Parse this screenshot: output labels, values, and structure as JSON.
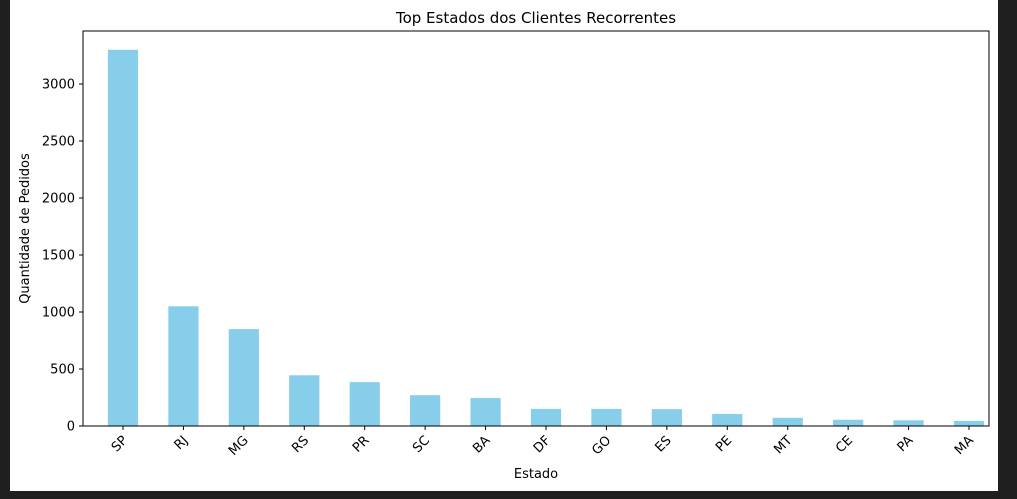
{
  "chart_data": {
    "type": "bar",
    "title": "Top Estados dos Clientes Recorrentes",
    "xlabel": "Estado",
    "ylabel": "Quantidade de Pedidos",
    "categories": [
      "SP",
      "RJ",
      "MG",
      "RS",
      "PR",
      "SC",
      "BA",
      "DF",
      "GO",
      "ES",
      "PE",
      "MT",
      "CE",
      "PA",
      "MA"
    ],
    "values": [
      3300,
      1050,
      850,
      445,
      385,
      270,
      245,
      150,
      150,
      148,
      105,
      72,
      55,
      50,
      45
    ],
    "ylim": [
      0,
      3465
    ],
    "yticks": [
      0,
      500,
      1000,
      1500,
      2000,
      2500,
      3000
    ],
    "bar_color": "#87ceeb",
    "grid": false,
    "legend": "none"
  }
}
